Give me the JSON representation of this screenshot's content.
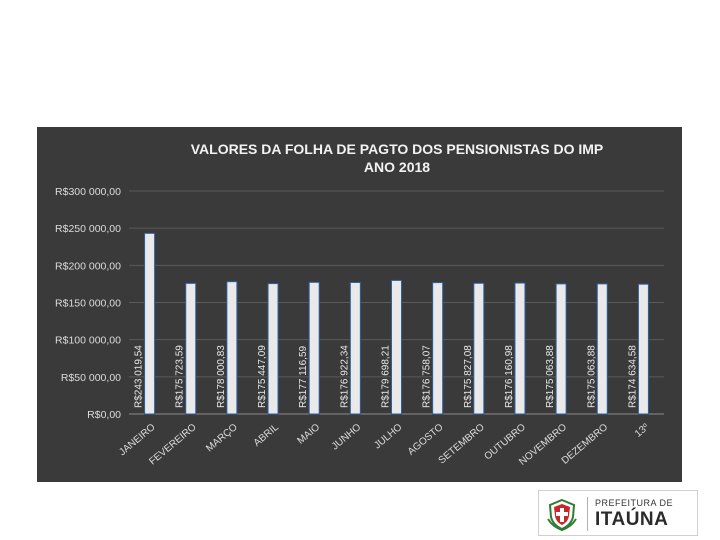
{
  "chart_data": {
    "type": "bar",
    "title": "VALORES DA FOLHA DE PAGTO DOS PENSIONISTAS DO IMP",
    "subtitle": "ANO 2018",
    "ylim": [
      0,
      300000
    ],
    "yticks": [
      0,
      50000,
      100000,
      150000,
      200000,
      250000,
      300000
    ],
    "ytick_labels": [
      "R$0,00",
      "R$50 000,00",
      "R$100 000,00",
      "R$150 000,00",
      "R$200 000,00",
      "R$250 000,00",
      "R$300 000,00"
    ],
    "categories": [
      "JANEIRO",
      "FEVEREIRO",
      "MARÇO",
      "ABRIL",
      "MAIO",
      "JUNHO",
      "JULHO",
      "AGOSTO",
      "SETEMBRO",
      "OUTUBRO",
      "NOVEMBRO",
      "DEZEMBRO",
      "13º"
    ],
    "values": [
      243019.54,
      175723.59,
      178000.83,
      175447.09,
      177116.59,
      176922.34,
      179698.21,
      176758.07,
      175827.08,
      176160.98,
      175063.88,
      175063.88,
      174634.58
    ],
    "data_labels": [
      "R$243 019,54",
      "R$175 723,59",
      "R$178 000,83",
      "R$175 447,09",
      "R$177 116,59",
      "R$176 922,34",
      "R$179 698,21",
      "R$176 758,07",
      "R$175 827,08",
      "R$176 160,98",
      "R$175 063,88",
      "R$175 063,88",
      "R$174 634,58"
    ],
    "grid": true,
    "legend": "none",
    "colors": {
      "background": "#3a3a3a",
      "bar_fill": "#e9e9e9",
      "bar_border": "#2f5fa6",
      "text": "#dcdcdc"
    }
  },
  "logo": {
    "line1": "PREFEITURA DE",
    "line2": "ITAÚNA",
    "crest": "city-crest-icon"
  }
}
